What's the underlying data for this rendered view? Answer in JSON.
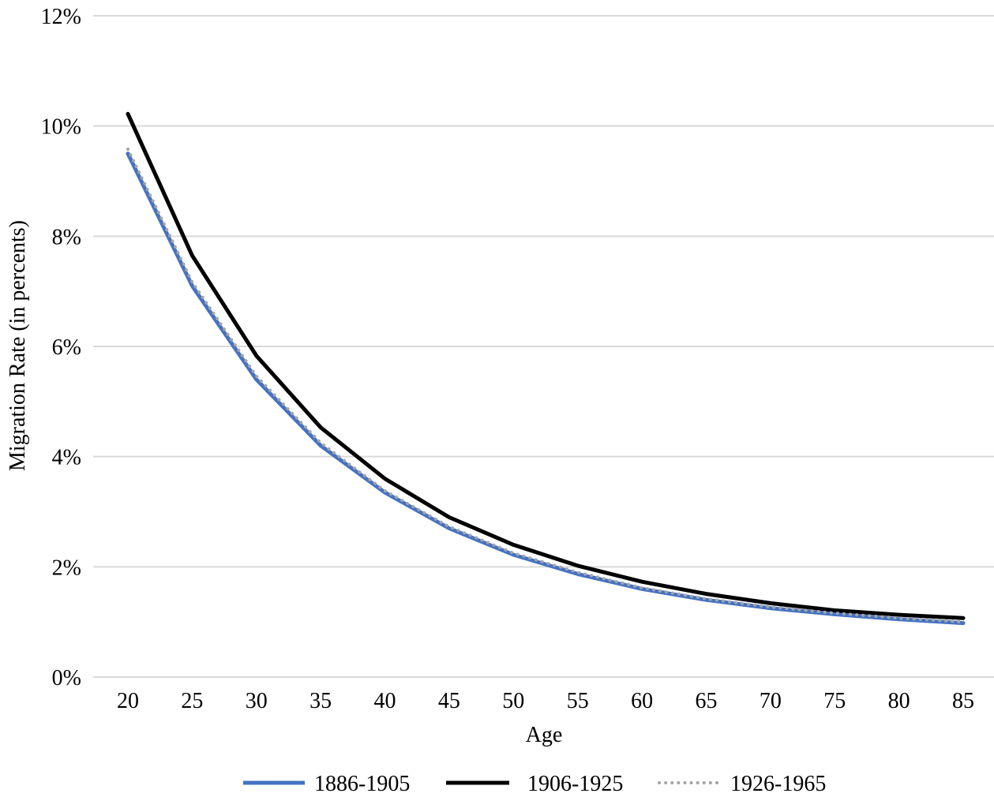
{
  "chart_data": {
    "type": "line",
    "title": "",
    "xlabel": "Age",
    "ylabel": "Migration Rate (in percents)",
    "x": [
      20,
      25,
      30,
      35,
      40,
      45,
      50,
      55,
      60,
      65,
      70,
      75,
      80,
      85
    ],
    "x_tick_labels": [
      "20",
      "25",
      "30",
      "35",
      "40",
      "45",
      "50",
      "55",
      "60",
      "65",
      "70",
      "75",
      "80",
      "85"
    ],
    "ylim": [
      0,
      12
    ],
    "y_ticks": [
      0,
      2,
      4,
      6,
      8,
      10,
      12
    ],
    "y_tick_labels": [
      "0%",
      "2%",
      "4%",
      "6%",
      "8%",
      "10%",
      "12%"
    ],
    "grid": "horizontal",
    "legend_position": "bottom",
    "series": [
      {
        "name": "1886-1905",
        "color": "#4472C4",
        "style": "solid",
        "values": [
          9.5,
          7.1,
          5.4,
          4.2,
          3.35,
          2.7,
          2.22,
          1.87,
          1.6,
          1.4,
          1.25,
          1.14,
          1.05,
          0.98
        ]
      },
      {
        "name": "1906-1925",
        "color": "#000000",
        "style": "solid",
        "values": [
          10.22,
          7.65,
          5.83,
          4.53,
          3.6,
          2.9,
          2.4,
          2.02,
          1.73,
          1.51,
          1.34,
          1.21,
          1.13,
          1.07
        ]
      },
      {
        "name": "1926-1965",
        "color": "#A5A5A5",
        "style": "dotted",
        "values": [
          9.58,
          7.17,
          5.46,
          4.25,
          3.38,
          2.73,
          2.25,
          1.9,
          1.62,
          1.42,
          1.27,
          1.16,
          1.07,
          1.0
        ]
      }
    ]
  }
}
